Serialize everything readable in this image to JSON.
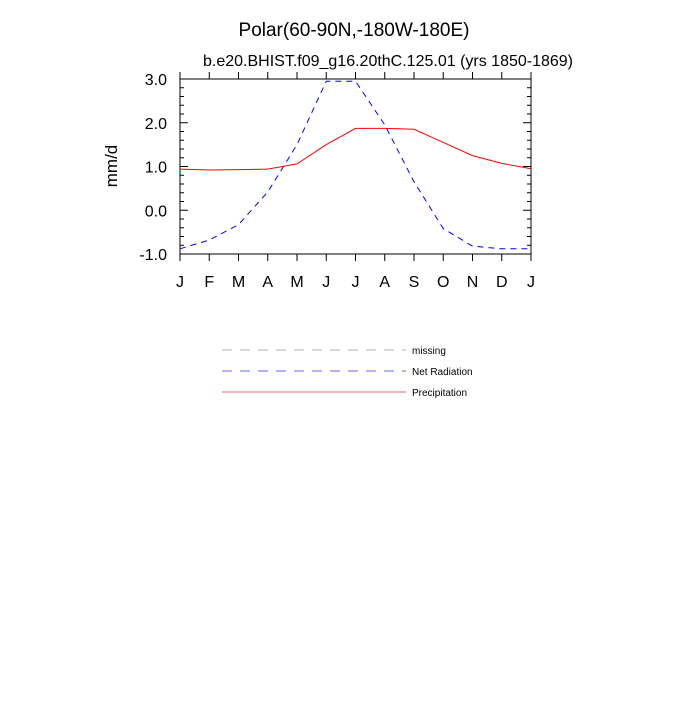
{
  "chart_data": {
    "type": "line",
    "title": "Polar(60-90N,-180W-180E)",
    "subtitle": "b.e20.BHIST.f09_g16.20thC.125.01 (yrs 1850-1869)",
    "ylabel": "mm/d",
    "xlabel": "",
    "categories": [
      "J",
      "F",
      "M",
      "A",
      "M",
      "J",
      "J",
      "A",
      "S",
      "O",
      "N",
      "D",
      "J"
    ],
    "ylim": [
      -1.0,
      3.0
    ],
    "yticks": [
      "-1.0",
      "0.0",
      "1.0",
      "2.0",
      "3.0"
    ],
    "ytick_values": [
      -1,
      0,
      1,
      2,
      3
    ],
    "grid": false,
    "legend_placement": "below",
    "series": [
      {
        "name": "Net Radiation",
        "color": "#0000ff",
        "dash": "dashed",
        "values": [
          -0.88,
          -0.68,
          -0.33,
          0.42,
          1.5,
          2.95,
          2.95,
          1.95,
          0.65,
          -0.42,
          -0.82,
          -0.88,
          -0.88
        ]
      },
      {
        "name": "Precipitation",
        "color": "#ff0000",
        "dash": "solid",
        "values": [
          0.94,
          0.92,
          0.93,
          0.94,
          1.06,
          1.5,
          1.87,
          1.87,
          1.85,
          1.55,
          1.25,
          1.07,
          0.95
        ]
      }
    ],
    "legend": [
      {
        "name": "missing",
        "color": "#808080",
        "dash": "dashed"
      },
      {
        "name": "Net Radiation",
        "color": "#0000ff",
        "dash": "dashed"
      },
      {
        "name": "Precipitation",
        "color": "#ff0000",
        "dash": "solid"
      }
    ]
  }
}
